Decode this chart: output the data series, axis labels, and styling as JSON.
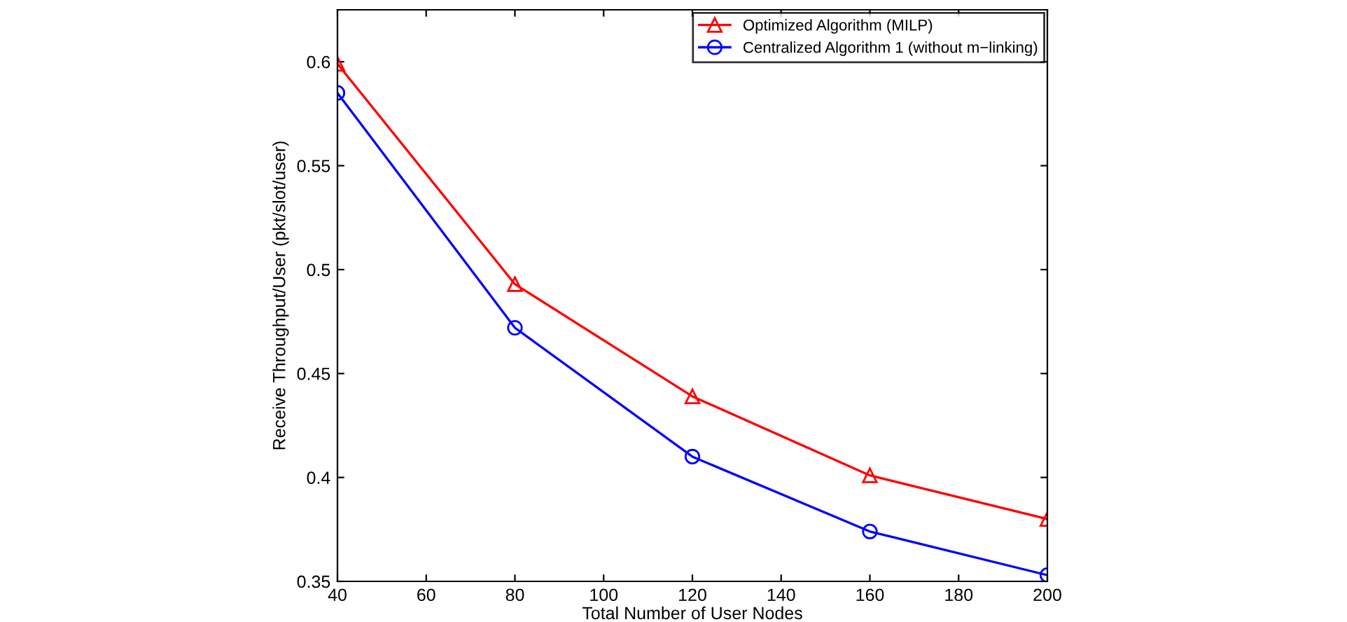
{
  "chart_data": {
    "type": "line",
    "xlabel": "Total Number of User Nodes",
    "ylabel": "Receive Throughput/User (pkt/slot/user)",
    "x": [
      40,
      80,
      120,
      160,
      200
    ],
    "series": [
      {
        "name": "Optimized Algorithm (MILP)",
        "color": "#ff0000",
        "marker": "triangle",
        "values": [
          0.599,
          0.493,
          0.439,
          0.401,
          0.38
        ]
      },
      {
        "name": "Centralized Algorithm 1 (without m−linking)",
        "color": "#0000ff",
        "marker": "circle",
        "values": [
          0.585,
          0.472,
          0.41,
          0.374,
          0.353
        ]
      }
    ],
    "xlim": [
      40,
      200
    ],
    "xticks": [
      40,
      60,
      80,
      100,
      120,
      140,
      160,
      180,
      200
    ],
    "ylim": [
      0.35,
      0.625
    ],
    "yticks": [
      0.35,
      0.4,
      0.45,
      0.5,
      0.55,
      0.6
    ],
    "grid": false,
    "legend": "top right",
    "line_style": "solid"
  }
}
